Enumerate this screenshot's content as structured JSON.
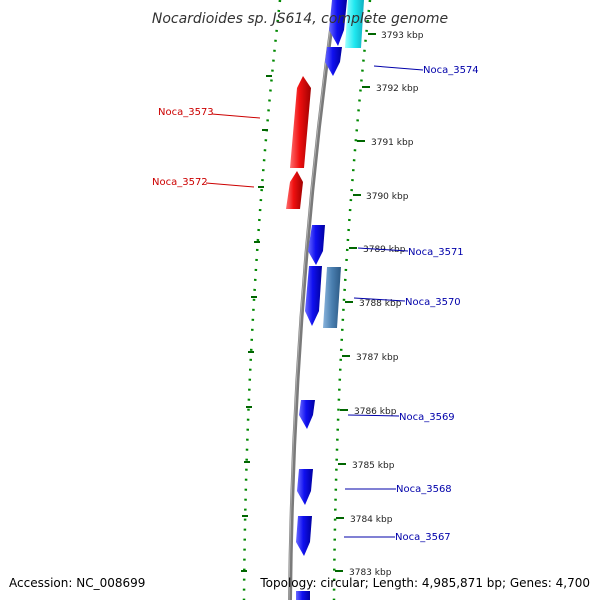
{
  "title": "Nocardioides sp. JS614, complete genome",
  "footer": {
    "accession": "Accession: NC_008699",
    "summary": "Topology: circular; Length: 4,985,871 bp; Genes: 4,700"
  },
  "colors": {
    "forward_gene": "#1010e8",
    "reverse_gene": "#e81010",
    "other_feature": "#4a7fb0",
    "cyan_feature": "#20e0e8",
    "label_forward": "#0000aa",
    "label_reverse": "#cc0000",
    "backbone": "#808080",
    "tick": "#007700"
  },
  "ticks": [
    {
      "label": "3793 kbp"
    },
    {
      "label": "3792 kbp"
    },
    {
      "label": "3791 kbp"
    },
    {
      "label": "3790 kbp"
    },
    {
      "label": "3789 kbp"
    },
    {
      "label": "3788 kbp"
    },
    {
      "label": "3787 kbp"
    },
    {
      "label": "3786 kbp"
    },
    {
      "label": "3785 kbp"
    },
    {
      "label": "3784 kbp"
    },
    {
      "label": "3783 kbp"
    }
  ],
  "genes": [
    {
      "name": "Noca_3574",
      "strand": "forward"
    },
    {
      "name": "Noca_3573",
      "strand": "reverse"
    },
    {
      "name": "Noca_3572",
      "strand": "reverse"
    },
    {
      "name": "Noca_3571",
      "strand": "forward"
    },
    {
      "name": "Noca_3570",
      "strand": "forward"
    },
    {
      "name": "Noca_3569",
      "strand": "forward"
    },
    {
      "name": "Noca_3568",
      "strand": "forward"
    },
    {
      "name": "Noca_3567",
      "strand": "forward"
    }
  ]
}
